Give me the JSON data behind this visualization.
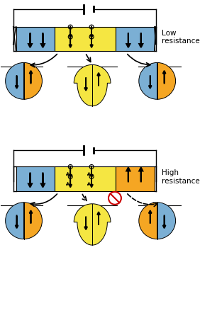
{
  "blue_color": "#7bafd4",
  "yellow_color": "#f5e642",
  "orange_color": "#f5a623",
  "bg_color": "#ffffff",
  "arrow_color": "#000000",
  "red_color": "#cc0000",
  "text_low": "Low\nresistance",
  "text_high": "High\nresistance",
  "fig_width": 3.06,
  "fig_height": 4.42,
  "dpi": 100
}
